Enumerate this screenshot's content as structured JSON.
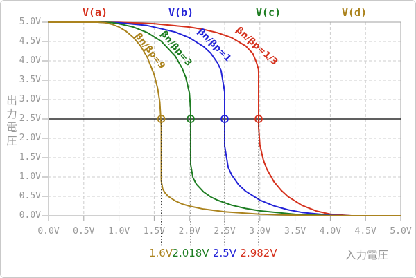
{
  "legend": {
    "items": [
      {
        "label": "V(a)",
        "color": "#d5311d"
      },
      {
        "label": "V(b)",
        "color": "#2323d7"
      },
      {
        "label": "V(c)",
        "color": "#1e7d22"
      },
      {
        "label": "V(d)",
        "color": "#ab831e"
      }
    ]
  },
  "axes": {
    "x": {
      "title": "入力電圧",
      "min": 0,
      "max": 5,
      "tick_step": 0.5,
      "tick_labels": [
        "0.0V",
        "0.5V",
        "1.0V",
        "1.5V",
        "2.0V",
        "2.5V",
        "3.0V",
        "3.5V",
        "4.0V",
        "4.5V",
        "5.0V"
      ]
    },
    "y": {
      "title": "出力電圧",
      "min": 0,
      "max": 5,
      "tick_step": 0.5,
      "tick_labels": [
        "0.0V",
        "0.5V",
        "1.0V",
        "1.5V",
        "2.0V",
        "2.5V",
        "3.0V",
        "3.5V",
        "4.0V",
        "4.5V",
        "5.0V"
      ]
    }
  },
  "chart_data": {
    "type": "line",
    "title": "",
    "xlabel": "入力電圧",
    "ylabel": "出力電圧",
    "xlim": [
      0,
      5
    ],
    "ylim": [
      0,
      5
    ],
    "grid": true,
    "legend_position": "top",
    "reference_line_y": 2.5,
    "series": [
      {
        "name": "V(a)",
        "label": "βn/βp=1/3",
        "color": "#d5311d",
        "switch_voltage": 2.982,
        "marker_label": "2.982V",
        "points": [
          [
            0,
            5
          ],
          [
            0.7,
            5
          ],
          [
            1.0,
            4.997
          ],
          [
            1.5,
            4.962
          ],
          [
            2.0,
            4.874
          ],
          [
            2.2,
            4.813
          ],
          [
            2.4,
            4.727
          ],
          [
            2.6,
            4.599
          ],
          [
            2.8,
            4.383
          ],
          [
            2.9,
            4.189
          ],
          [
            2.95,
            3.97
          ],
          [
            2.98,
            3.78
          ],
          [
            2.982,
            3.7
          ],
          [
            2.982,
            2.282
          ],
          [
            3.0,
            1.831
          ],
          [
            3.05,
            1.436
          ],
          [
            3.1,
            1.2
          ],
          [
            3.2,
            0.881
          ],
          [
            3.3,
            0.661
          ],
          [
            3.4,
            0.495
          ],
          [
            3.6,
            0.266
          ],
          [
            3.8,
            0.123
          ],
          [
            4.0,
            0.041
          ],
          [
            4.3,
            0
          ],
          [
            5,
            0
          ]
        ]
      },
      {
        "name": "V(b)",
        "label": "βn/βp=1",
        "color": "#2323d7",
        "switch_voltage": 2.5,
        "marker_label": "2.5V",
        "points": [
          [
            0,
            5
          ],
          [
            0.7,
            5
          ],
          [
            1.0,
            4.986
          ],
          [
            1.4,
            4.914
          ],
          [
            1.8,
            4.745
          ],
          [
            2.0,
            4.597
          ],
          [
            2.2,
            4.37
          ],
          [
            2.3,
            4.203
          ],
          [
            2.4,
            3.949
          ],
          [
            2.45,
            3.75
          ],
          [
            2.5,
            3.2
          ],
          [
            2.5,
            1.8
          ],
          [
            2.55,
            1.25
          ],
          [
            2.6,
            1.051
          ],
          [
            2.7,
            0.797
          ],
          [
            2.8,
            0.63
          ],
          [
            3.0,
            0.403
          ],
          [
            3.2,
            0.255
          ],
          [
            3.4,
            0.154
          ],
          [
            3.6,
            0.086
          ],
          [
            4.0,
            0.014
          ],
          [
            4.3,
            0
          ],
          [
            5,
            0
          ]
        ]
      },
      {
        "name": "V(c)",
        "label": "βn/βp=3",
        "color": "#1e7d22",
        "switch_voltage": 2.018,
        "marker_label": "2.018V",
        "points": [
          [
            0,
            5
          ],
          [
            0.7,
            5
          ],
          [
            0.9,
            4.99
          ],
          [
            1.0,
            4.959
          ],
          [
            1.2,
            4.877
          ],
          [
            1.4,
            4.734
          ],
          [
            1.6,
            4.505
          ],
          [
            1.8,
            4.119
          ],
          [
            1.9,
            3.8
          ],
          [
            1.95,
            3.564
          ],
          [
            2.0,
            3.169
          ],
          [
            2.018,
            2.718
          ],
          [
            2.018,
            1.318
          ],
          [
            2.05,
            0.983
          ],
          [
            2.1,
            0.811
          ],
          [
            2.2,
            0.617
          ],
          [
            2.3,
            0.49
          ],
          [
            2.4,
            0.401
          ],
          [
            2.6,
            0.273
          ],
          [
            2.8,
            0.187
          ],
          [
            3.0,
            0.126
          ],
          [
            3.5,
            0.038
          ],
          [
            4.0,
            0.005
          ],
          [
            4.3,
            0
          ],
          [
            5,
            0
          ]
        ]
      },
      {
        "name": "V(d)",
        "label": "βn/βp=9",
        "color": "#ab831e",
        "switch_voltage": 1.6,
        "marker_label": "1.6V",
        "points": [
          [
            0,
            5
          ],
          [
            0.7,
            5
          ],
          [
            0.8,
            4.987
          ],
          [
            0.9,
            4.947
          ],
          [
            1.0,
            4.875
          ],
          [
            1.1,
            4.766
          ],
          [
            1.2,
            4.613
          ],
          [
            1.3,
            4.4
          ],
          [
            1.4,
            4.1
          ],
          [
            1.5,
            3.642
          ],
          [
            1.55,
            3.28
          ],
          [
            1.58,
            2.935
          ],
          [
            1.6,
            2.3
          ],
          [
            1.6,
            0.9
          ],
          [
            1.62,
            0.7
          ],
          [
            1.65,
            0.6
          ],
          [
            1.7,
            0.501
          ],
          [
            1.8,
            0.382
          ],
          [
            1.9,
            0.301
          ],
          [
            2.0,
            0.25
          ],
          [
            2.2,
            0.173
          ],
          [
            2.5,
            0.103
          ],
          [
            3.0,
            0.041
          ],
          [
            3.5,
            0.013
          ],
          [
            4.0,
            0.002
          ],
          [
            4.3,
            0
          ],
          [
            5,
            0
          ]
        ]
      }
    ]
  }
}
